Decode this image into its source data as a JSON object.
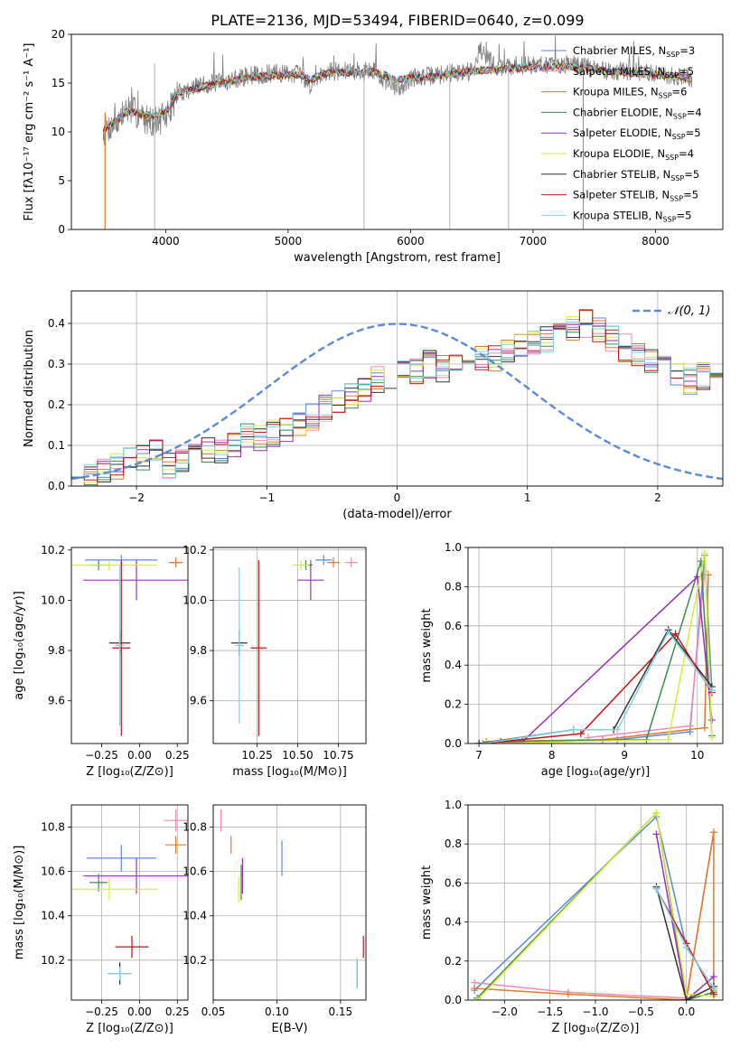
{
  "figure": {
    "title": "PLATE=2136, MJD=53494, FIBERID=0640, z=0.099"
  },
  "models": [
    {
      "name": "Chabrier MILES",
      "nssp": "3",
      "color": "#5b8bd6"
    },
    {
      "name": "Salpeter MILES",
      "nssp": "5",
      "color": "#f28bb3"
    },
    {
      "name": "Kroupa MILES",
      "nssp": "6",
      "color": "#e07b28"
    },
    {
      "name": "Chabrier ELODIE",
      "nssp": "4",
      "color": "#3f8a4f"
    },
    {
      "name": "Salpeter ELODIE",
      "nssp": "5",
      "color": "#9b30b8"
    },
    {
      "name": "Kroupa ELODIE",
      "nssp": "4",
      "color": "#d8ec3a"
    },
    {
      "name": "Chabrier STELIB",
      "nssp": "5",
      "color": "#333333"
    },
    {
      "name": "Salpeter STELIB",
      "nssp": "5",
      "color": "#c0161a"
    },
    {
      "name": "Kroupa STELIB",
      "nssp": "5",
      "color": "#7fd3e3"
    }
  ],
  "chart_data": [
    {
      "id": "spectrum",
      "type": "line",
      "xlabel": "wavelength [Angstrom, rest frame]",
      "ylabel": "Flux [fλ10⁻¹⁷ erg cm⁻² s⁻¹ A⁻¹]",
      "xlim": [
        3230,
        8550
      ],
      "ylim": [
        0,
        20
      ],
      "xticks": [
        4000,
        5000,
        6000,
        7000,
        8000
      ],
      "yticks": [
        0,
        5,
        10,
        15,
        20
      ],
      "legend_position": "right",
      "data_flux": {
        "x": [
          3490,
          3600,
          3700,
          3800,
          3900,
          4000,
          4100,
          4300,
          4500,
          4700,
          4900,
          5100,
          5175,
          5300,
          5500,
          5700,
          5890,
          6000,
          6200,
          6500,
          6563,
          6700,
          7000,
          7300,
          7600,
          8000,
          8300
        ],
        "y": [
          10.0,
          11.0,
          12.5,
          11.5,
          11.0,
          11.5,
          14.0,
          14.8,
          15.2,
          15.8,
          16.0,
          16.0,
          14.8,
          16.2,
          16.2,
          16.3,
          14.3,
          15.5,
          15.8,
          16.3,
          18.5,
          16.6,
          16.9,
          16.9,
          16.3,
          16.0,
          15.5
        ]
      },
      "model_flux": {
        "x": [
          3490,
          3600,
          3700,
          3800,
          3900,
          4000,
          4100,
          4300,
          4500,
          4700,
          4900,
          5100,
          5175,
          5300,
          5500,
          5700,
          5890,
          6000,
          6200,
          6500,
          6563,
          6700,
          7000,
          7300,
          7600,
          8000,
          8300
        ],
        "y": [
          10.2,
          11.2,
          12.2,
          11.8,
          11.6,
          12.0,
          14.0,
          14.6,
          15.1,
          15.6,
          15.8,
          15.9,
          15.3,
          16.0,
          16.1,
          16.2,
          15.3,
          15.5,
          15.7,
          16.2,
          16.3,
          16.4,
          16.7,
          16.7,
          16.2,
          15.9,
          15.4
        ]
      },
      "emission_line_spikes": [
        3910,
        5620,
        6320,
        6800,
        7410
      ]
    },
    {
      "id": "residuals",
      "type": "line",
      "xlabel": "(data-model)/error",
      "ylabel": "Normed distribution",
      "xlim": [
        -2.5,
        2.5
      ],
      "ylim": [
        0,
        0.48
      ],
      "xticks": [
        -2,
        -1,
        0,
        1,
        2
      ],
      "yticks": [
        0.0,
        0.1,
        0.2,
        0.3,
        0.4
      ],
      "legend": "𝒩(0, 1)",
      "legend_position": "top-right",
      "reference_curve": "normal(0,1)",
      "bin_start": -2.5,
      "bin_width": 0.1,
      "hist": [
        0.03,
        0.03,
        0.04,
        0.05,
        0.06,
        0.07,
        0.08,
        0.05,
        0.07,
        0.08,
        0.09,
        0.09,
        0.1,
        0.12,
        0.12,
        0.13,
        0.14,
        0.15,
        0.17,
        0.19,
        0.21,
        0.22,
        0.24,
        0.26,
        0.26,
        0.28,
        0.28,
        0.3,
        0.29,
        0.3,
        0.3,
        0.32,
        0.31,
        0.33,
        0.34,
        0.35,
        0.36,
        0.38,
        0.39,
        0.4,
        0.38,
        0.36,
        0.34,
        0.33,
        0.31,
        0.29,
        0.27,
        0.26,
        0.27,
        0.25,
        0.23,
        0.22,
        0.21,
        0.23,
        0.22,
        0.2,
        0.2,
        0.19,
        0.17,
        0.16,
        0.15,
        0.14,
        0.13,
        0.12,
        0.11,
        0.1,
        0.09,
        0.09,
        0.08,
        0.08,
        0.08,
        0.07,
        0.07,
        0.07,
        0.06
      ]
    },
    {
      "id": "age-vs-Z",
      "type": "scatter",
      "xlabel": "Z [log₁₀(Z/Z⊙)]",
      "ylabel": "age  [log₁₀(age/yr)]",
      "xlim": [
        -0.45,
        0.32
      ],
      "ylim": [
        9.43,
        10.21
      ],
      "xticks": [
        -0.25,
        0.0,
        0.25
      ],
      "xticklabels": [
        "−0.25",
        "0.00",
        "0.25"
      ],
      "yticks": [
        9.6,
        9.8,
        10.0,
        10.2
      ],
      "points": [
        {
          "x": -0.12,
          "y": 10.16,
          "xerr": 0.24,
          "yerr": 0.02
        },
        {
          "x": 0.24,
          "y": 10.15,
          "xerr": 0.05,
          "yerr": 0.02
        },
        {
          "x": 0.24,
          "y": 10.15,
          "xerr": 0.04,
          "yerr": 0.02
        },
        {
          "x": -0.27,
          "y": 10.14,
          "xerr": 0.06,
          "yerr": 0.02
        },
        {
          "x": -0.02,
          "y": 10.08,
          "xerr": 0.35,
          "yerr": 0.08
        },
        {
          "x": -0.2,
          "y": 10.14,
          "xerr": 0.32,
          "yerr": 0.02
        },
        {
          "x": -0.13,
          "y": 9.83,
          "xerr": 0.07,
          "yerr": 0.05
        },
        {
          "x": -0.12,
          "y": 9.81,
          "xerr": 0.06,
          "yerr": 0.35
        },
        {
          "x": -0.13,
          "y": 9.82,
          "xerr": 0.03,
          "yerr": 0.32
        }
      ]
    },
    {
      "id": "age-vs-mass",
      "type": "scatter",
      "xlabel": "mass [log₁₀(M/M⊙)]",
      "ylabel": "",
      "xlim": [
        9.98,
        10.92
      ],
      "ylim": [
        9.43,
        10.21
      ],
      "xticks": [
        10.25,
        10.5,
        10.75
      ],
      "xticklabels": [
        "10.25",
        "10.50",
        "10.75"
      ],
      "yticks": [
        9.6,
        9.8,
        10.0,
        10.2
      ],
      "points": [
        {
          "x": 10.66,
          "y": 10.16,
          "xerr": 0.05,
          "yerr": 0.02
        },
        {
          "x": 10.83,
          "y": 10.15,
          "xerr": 0.04,
          "yerr": 0.02
        },
        {
          "x": 10.72,
          "y": 10.15,
          "xerr": 0.04,
          "yerr": 0.02
        },
        {
          "x": 10.55,
          "y": 10.14,
          "xerr": 0.04,
          "yerr": 0.02
        },
        {
          "x": 10.58,
          "y": 10.08,
          "xerr": 0.08,
          "yerr": 0.08
        },
        {
          "x": 10.52,
          "y": 10.14,
          "xerr": 0.05,
          "yerr": 0.02
        },
        {
          "x": 10.14,
          "y": 9.83,
          "xerr": 0.05,
          "yerr": 0.05
        },
        {
          "x": 10.26,
          "y": 9.81,
          "xerr": 0.05,
          "yerr": 0.35
        },
        {
          "x": 10.14,
          "y": 9.82,
          "xerr": 0.03,
          "yerr": 0.31
        }
      ]
    },
    {
      "id": "weight-vs-age",
      "type": "line",
      "xlabel": "age  [log₁₀(age/yr)]",
      "ylabel": "mass weight",
      "xlim": [
        6.85,
        10.35
      ],
      "ylim": [
        0,
        1
      ],
      "xticks": [
        7,
        8,
        9,
        10
      ],
      "yticks": [
        0.0,
        0.2,
        0.4,
        0.6,
        0.8,
        1.0
      ],
      "series": [
        {
          "x": [
            8.9,
            9.9,
            10.1,
            10.2
          ],
          "y": [
            0.02,
            0.06,
            0.96,
            0.27
          ]
        },
        {
          "x": [
            8.5,
            9.9,
            10.1
          ],
          "y": [
            0.03,
            0.09,
            0.88
          ]
        },
        {
          "x": [
            7.1,
            8.7,
            10.1,
            10.15
          ],
          "y": [
            0.01,
            0.02,
            0.08,
            0.86
          ]
        },
        {
          "x": [
            7.3,
            9.3,
            10.05,
            10.2
          ],
          "y": [
            0.01,
            0.02,
            0.93,
            0.04
          ]
        },
        {
          "x": [
            7.0,
            7.6,
            10.0,
            10.2
          ],
          "y": [
            0.0,
            0.01,
            0.85,
            0.12
          ]
        },
        {
          "x": [
            7.1,
            9.6,
            10.1,
            10.2
          ],
          "y": [
            0.0,
            0.02,
            0.97,
            0.03
          ]
        },
        {
          "x": [
            7.0,
            8.3,
            8.85,
            9.6,
            10.2
          ],
          "y": [
            0.0,
            0.07,
            0.07,
            0.58,
            0.29
          ]
        },
        {
          "x": [
            7.05,
            8.4,
            9.7,
            10.2
          ],
          "y": [
            0.0,
            0.05,
            0.56,
            0.26
          ]
        },
        {
          "x": [
            7.05,
            8.3,
            8.9,
            9.6,
            10.2
          ],
          "y": [
            0.0,
            0.07,
            0.07,
            0.57,
            0.27
          ]
        }
      ]
    },
    {
      "id": "mass-vs-Z",
      "type": "scatter",
      "xlabel": "Z [log₁₀(Z/Z⊙)]",
      "ylabel": "mass [log₁₀(M/M⊙)]",
      "xlim": [
        -0.45,
        0.32
      ],
      "ylim": [
        10.02,
        10.9
      ],
      "xticks": [
        -0.25,
        0.0,
        0.25
      ],
      "xticklabels": [
        "−0.25",
        "0.00",
        "0.25"
      ],
      "yticks": [
        10.2,
        10.4,
        10.6,
        10.8
      ],
      "points": [
        {
          "x": -0.12,
          "y": 10.66,
          "xerr": 0.23,
          "yerr": 0.06
        },
        {
          "x": 0.24,
          "y": 10.83,
          "xerr": 0.08,
          "yerr": 0.05
        },
        {
          "x": 0.24,
          "y": 10.72,
          "xerr": 0.07,
          "yerr": 0.04
        },
        {
          "x": -0.27,
          "y": 10.55,
          "xerr": 0.06,
          "yerr": 0.04
        },
        {
          "x": -0.02,
          "y": 10.58,
          "xerr": 0.35,
          "yerr": 0.08
        },
        {
          "x": -0.2,
          "y": 10.52,
          "xerr": 0.32,
          "yerr": 0.05
        },
        {
          "x": -0.13,
          "y": 10.14,
          "xerr": 0.08,
          "yerr": 0.05
        },
        {
          "x": -0.05,
          "y": 10.26,
          "xerr": 0.11,
          "yerr": 0.05
        },
        {
          "x": -0.13,
          "y": 10.14,
          "xerr": 0.08,
          "yerr": 0.03
        }
      ]
    },
    {
      "id": "mass-vs-ebv",
      "type": "scatter",
      "xlabel": "E(B-V)",
      "ylabel": "",
      "xlim": [
        0.05,
        0.17
      ],
      "ylim": [
        10.02,
        10.9
      ],
      "xticks": [
        0.05,
        0.1,
        0.15
      ],
      "xticklabels": [
        "0.05",
        "0.10",
        "0.15"
      ],
      "yticks": [
        10.2,
        10.4,
        10.6,
        10.8
      ],
      "points": [
        {
          "x": 0.104,
          "y": 10.66,
          "xerr": 0,
          "yerr": 0.08
        },
        {
          "x": 0.056,
          "y": 10.83,
          "xerr": 0,
          "yerr": 0.05
        },
        {
          "x": 0.064,
          "y": 10.72,
          "xerr": 0,
          "yerr": 0.04
        },
        {
          "x": 0.072,
          "y": 10.55,
          "xerr": 0,
          "yerr": 0.08
        },
        {
          "x": 0.073,
          "y": 10.58,
          "xerr": 0,
          "yerr": 0.08
        },
        {
          "x": 0.07,
          "y": 10.52,
          "xerr": 0,
          "yerr": 0.06
        },
        {
          "x": 0.163,
          "y": 10.14,
          "xerr": 0,
          "yerr": 0.06
        },
        {
          "x": 0.168,
          "y": 10.26,
          "xerr": 0,
          "yerr": 0.05
        },
        {
          "x": 0.163,
          "y": 10.14,
          "xerr": 0,
          "yerr": 0.07
        }
      ]
    },
    {
      "id": "weight-vs-Z",
      "type": "line",
      "xlabel": "Z [log₁₀(Z/Z⊙)]",
      "ylabel": "mass weight",
      "xlim": [
        -2.4,
        0.4
      ],
      "ylim": [
        0,
        1
      ],
      "xticks": [
        -2.0,
        -1.5,
        -1.0,
        -0.5,
        0.0
      ],
      "xticklabels": [
        "−2.0",
        "−1.5",
        "−1.0",
        "−0.5",
        "0.0"
      ],
      "yticks": [
        0.0,
        0.2,
        0.4,
        0.6,
        0.8,
        1.0
      ],
      "series": [
        {
          "x": [
            -2.33,
            -0.33,
            0.0,
            0.3
          ],
          "y": [
            0.05,
            0.94,
            0.27,
            0.06
          ]
        },
        {
          "x": [
            -2.33,
            -1.3,
            0.0,
            0.3
          ],
          "y": [
            0.09,
            0.04,
            0.01,
            0.86
          ]
        },
        {
          "x": [
            -2.33,
            -1.3,
            0.0,
            0.3,
            0.3
          ],
          "y": [
            0.06,
            0.03,
            0.0,
            0.86,
            0.05
          ]
        },
        {
          "x": [
            -2.3,
            -0.33,
            0.0,
            0.3
          ],
          "y": [
            0.01,
            0.96,
            0.0,
            0.04
          ]
        },
        {
          "x": [
            -0.33,
            0.0,
            0.3
          ],
          "y": [
            0.85,
            0.0,
            0.12
          ]
        },
        {
          "x": [
            -2.3,
            -0.33,
            0.0,
            0.3
          ],
          "y": [
            0.0,
            0.96,
            0.03,
            0.02
          ]
        },
        {
          "x": [
            -0.33,
            0.0,
            0.3
          ],
          "y": [
            0.58,
            0.0,
            0.07
          ]
        },
        {
          "x": [
            -0.33,
            0.0,
            0.3
          ],
          "y": [
            0.57,
            0.29,
            0.03
          ]
        },
        {
          "x": [
            -0.33,
            0.0,
            0.3
          ],
          "y": [
            0.57,
            0.27,
            0.06
          ]
        }
      ]
    }
  ]
}
